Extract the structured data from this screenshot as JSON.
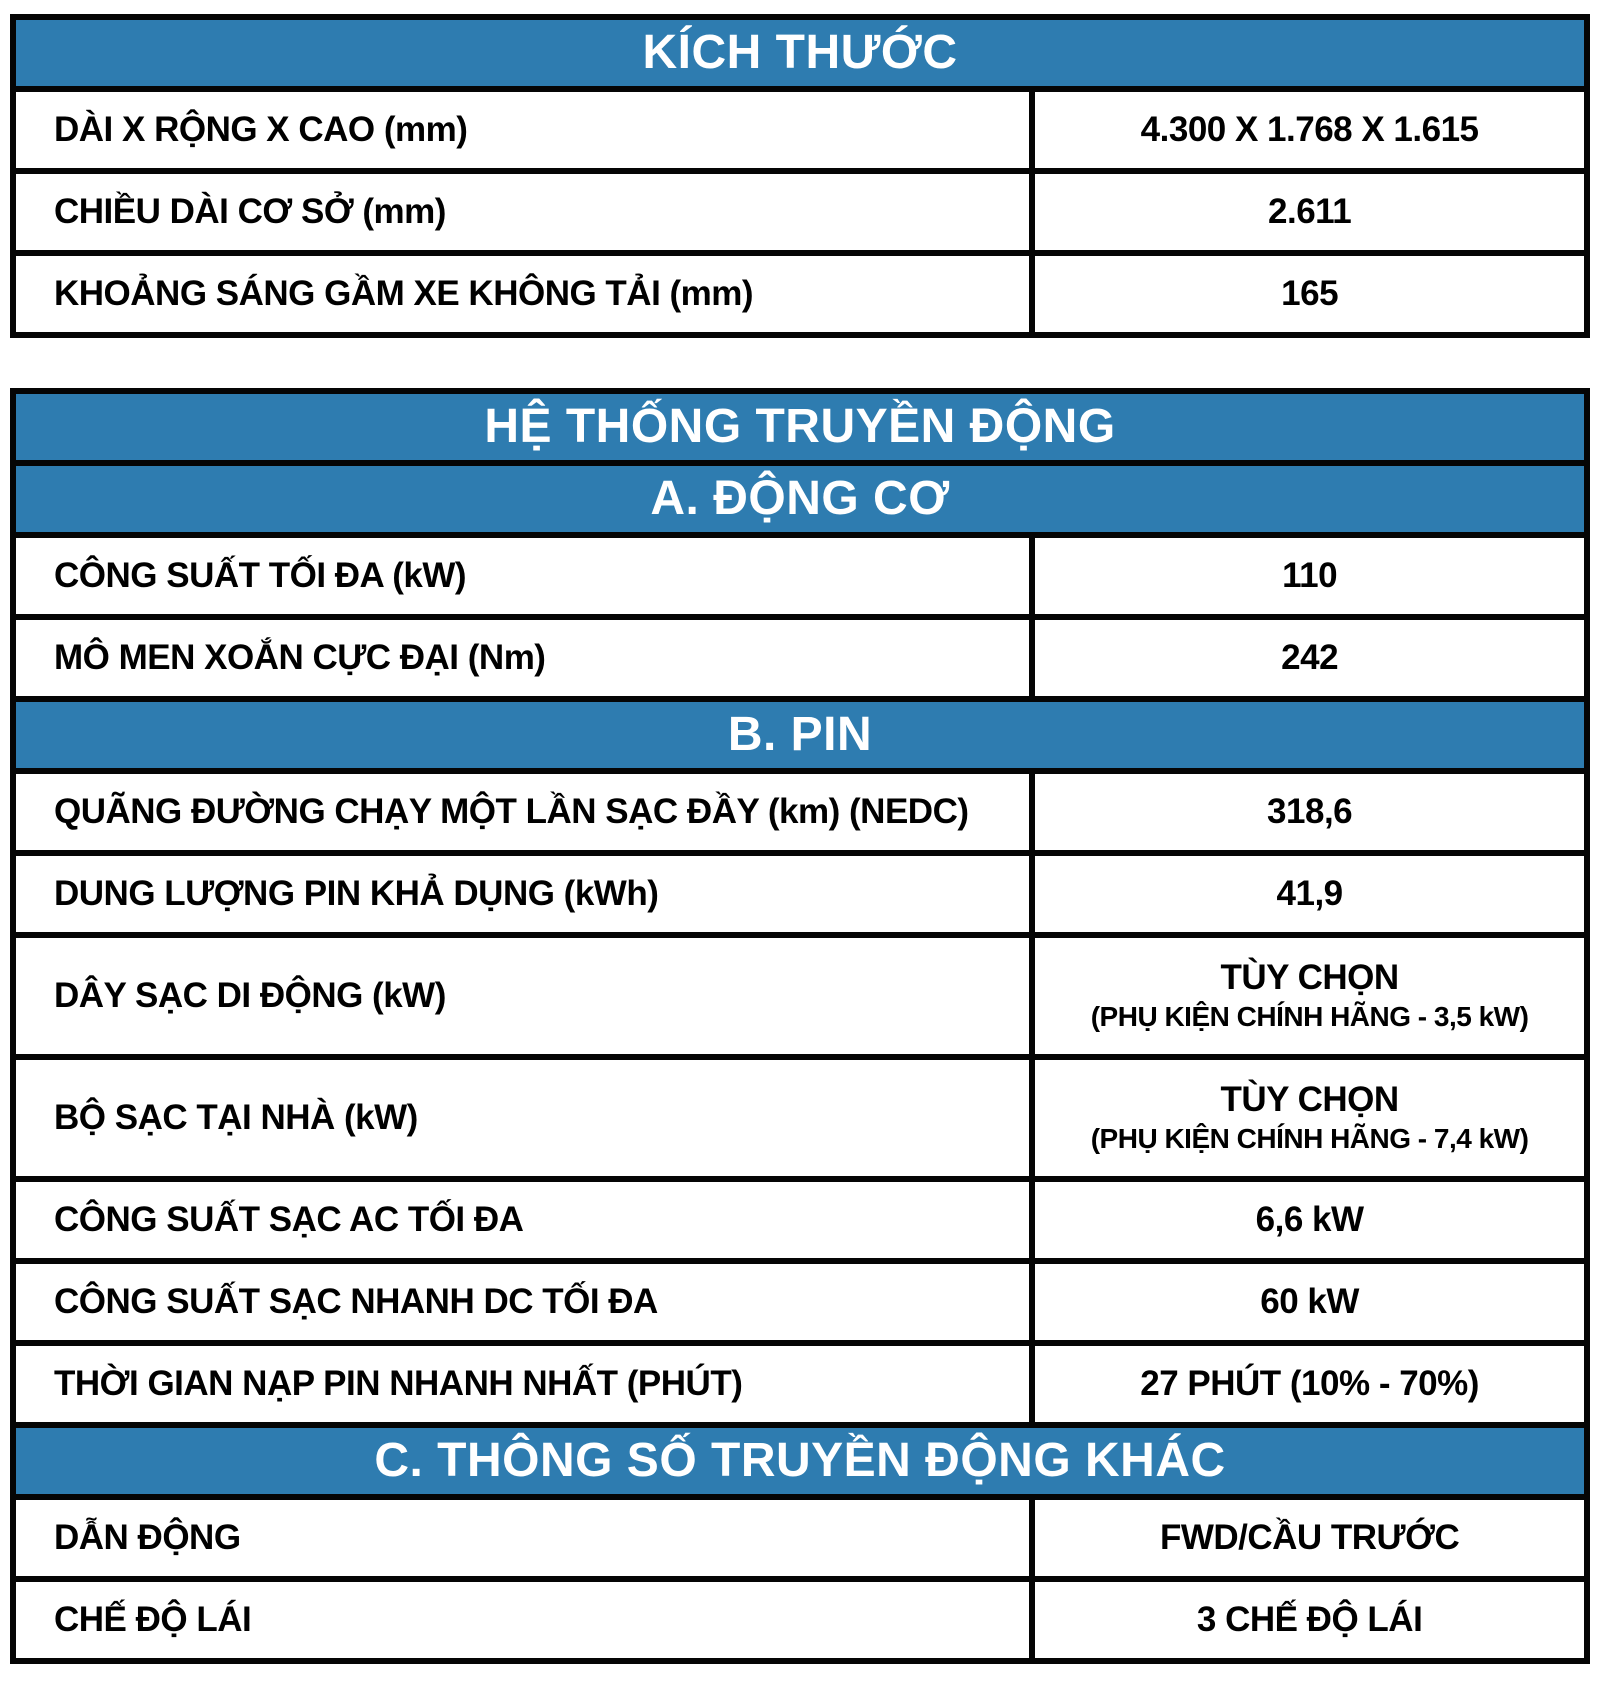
{
  "theme": {
    "band_background": "#2e7cb0",
    "band_text": "#ffffff",
    "border": "#050505",
    "body_text": "#000000"
  },
  "tables": [
    {
      "title": "KÍCH THƯỚC",
      "sections": [
        {
          "rows": [
            {
              "label": "DÀI X RỘNG X CAO (mm)",
              "value": "4.300 X 1.768 X 1.615"
            },
            {
              "label": "CHIỀU DÀI CƠ SỞ (mm)",
              "value": "2.611"
            },
            {
              "label": "KHOẢNG SÁNG GẦM XE KHÔNG TẢI (mm)",
              "value": "165"
            }
          ]
        }
      ]
    },
    {
      "title": "HỆ THỐNG TRUYỀN ĐỘNG",
      "sections": [
        {
          "subtitle": "A. ĐỘNG CƠ",
          "rows": [
            {
              "label": "CÔNG SUẤT TỐI ĐA (kW)",
              "value": "110"
            },
            {
              "label": "MÔ MEN XOẮN CỰC ĐẠI (Nm)",
              "value": "242"
            }
          ]
        },
        {
          "subtitle": "B. PIN",
          "rows": [
            {
              "label": "QUÃNG ĐƯỜNG CHẠY MỘT LẦN SẠC ĐẦY (km) (NEDC)",
              "value": "318,6"
            },
            {
              "label": "DUNG LƯỢNG PIN KHẢ DỤNG (kWh)",
              "value": "41,9"
            },
            {
              "label": "DÂY SẠC DI ĐỘNG (kW)",
              "value": "TÙY CHỌN",
              "note": "(PHỤ KIỆN CHÍNH HÃNG - 3,5 kW)"
            },
            {
              "label": "BỘ SẠC TẠI NHÀ (kW)",
              "value": "TÙY CHỌN",
              "note": "(PHỤ KIỆN CHÍNH HÃNG - 7,4 kW)"
            },
            {
              "label": "CÔNG SUẤT SẠC AC TỐI ĐA",
              "value": "6,6 kW"
            },
            {
              "label": "CÔNG SUẤT SẠC NHANH DC TỐI ĐA",
              "value": "60 kW"
            },
            {
              "label": "THỜI GIAN NẠP PIN NHANH NHẤT (PHÚT)",
              "value": "27 PHÚT (10% - 70%)"
            }
          ]
        },
        {
          "subtitle": "C. THÔNG SỐ TRUYỀN ĐỘNG KHÁC",
          "rows": [
            {
              "label": "DẪN ĐỘNG",
              "value": "FWD/CẦU TRƯỚC"
            },
            {
              "label": "CHẾ ĐỘ LÁI",
              "value": "3 CHẾ ĐỘ LÁI"
            }
          ]
        }
      ]
    }
  ]
}
